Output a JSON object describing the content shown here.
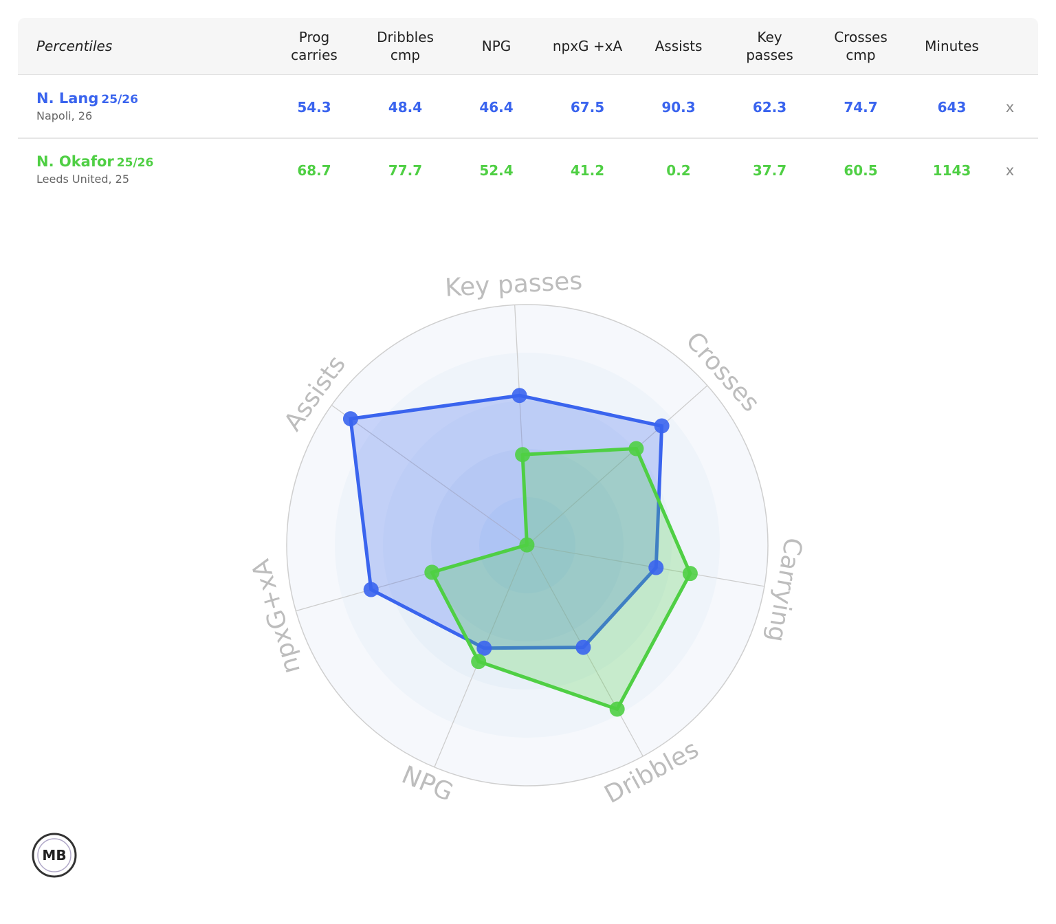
{
  "table": {
    "header": [
      "Percentiles",
      "Prog carries",
      "Dribbles cmp",
      "NPG",
      "npxG +xA",
      "Assists",
      "Key passes",
      "Crosses cmp",
      "Minutes"
    ],
    "rows": [
      {
        "name": "N. Lang",
        "season": "25/26",
        "info": "Napoli, 26",
        "color": "#3a64ee",
        "values": [
          "54.3",
          "48.4",
          "46.4",
          "67.5",
          "90.3",
          "62.3",
          "74.7",
          "643"
        ],
        "remove": "x"
      },
      {
        "name": "N. Okafor",
        "season": "25/26",
        "info": "Leeds United, 25",
        "color": "#4fcf44",
        "values": [
          "68.7",
          "77.7",
          "52.4",
          "41.2",
          "0.2",
          "37.7",
          "60.5",
          "1143"
        ],
        "remove": "x"
      }
    ]
  },
  "chart_data": {
    "type": "radar",
    "axes": [
      "Key passes",
      "Crosses",
      "Carrying",
      "Dribbles",
      "NPG",
      "npxG+xA",
      "Assists"
    ],
    "series": [
      {
        "color": "#3a64ee",
        "values": [
          62.3,
          74.7,
          54.3,
          48.4,
          46.4,
          67.5,
          90.3
        ]
      },
      {
        "color": "#4fcf44",
        "values": [
          37.7,
          60.5,
          68.7,
          77.7,
          52.4,
          41.2,
          0.2
        ]
      }
    ],
    "rlim": [
      0,
      100
    ],
    "rticks": [
      20,
      40,
      60,
      80,
      100
    ]
  },
  "logo": "MB"
}
